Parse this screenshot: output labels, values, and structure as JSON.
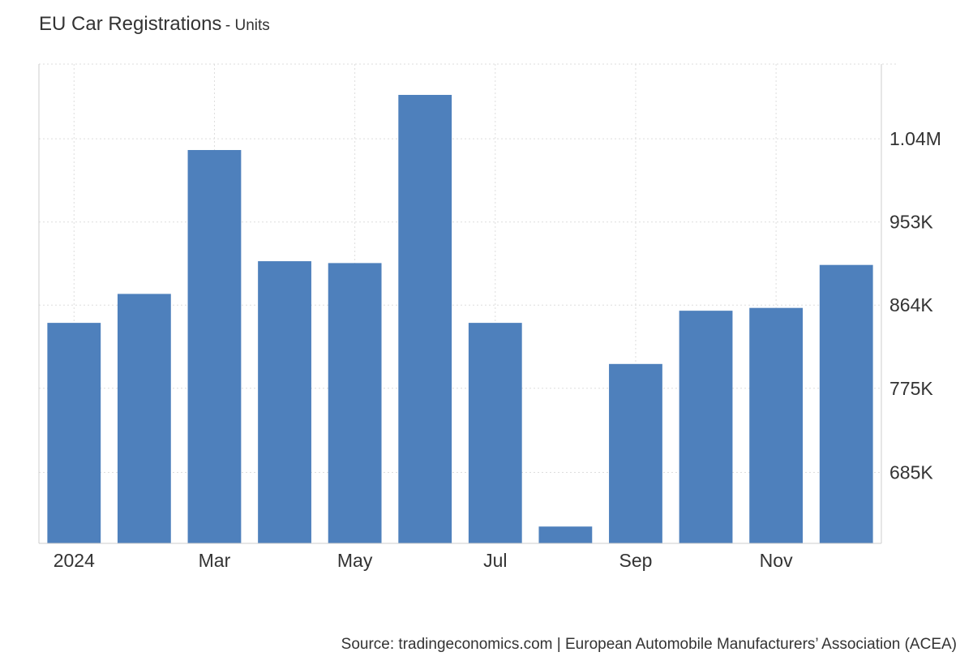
{
  "chart_data": {
    "type": "bar",
    "title": "EU Car Registrations",
    "subtitle": "Units",
    "categories": [
      "Jan 2024",
      "Feb 2024",
      "Mar 2024",
      "Apr 2024",
      "May 2024",
      "Jun 2024",
      "Jul 2024",
      "Aug 2024",
      "Sep 2024",
      "Oct 2024",
      "Nov 2024",
      "Dec 2024"
    ],
    "values": [
      845000,
      876000,
      1030000,
      911000,
      909000,
      1089000,
      845000,
      627000,
      801000,
      858000,
      861000,
      907000
    ],
    "x_tick_labels": [
      "2024",
      "Mar",
      "May",
      "Jul",
      "Sep",
      "Nov"
    ],
    "y_tick_labels": [
      "1.04M",
      "953K",
      "864K",
      "775K",
      "685K"
    ],
    "y_tick_values": [
      1042000,
      953000,
      864000,
      775000,
      685000
    ],
    "ylim": [
      609000,
      1122000
    ],
    "color": "#4e80bc",
    "grid": true,
    "y_axis_side": "right",
    "legend": "none",
    "source": "Source: tradingeconomics.com | European Automobile Manufacturers’ Association (ACEA)"
  }
}
